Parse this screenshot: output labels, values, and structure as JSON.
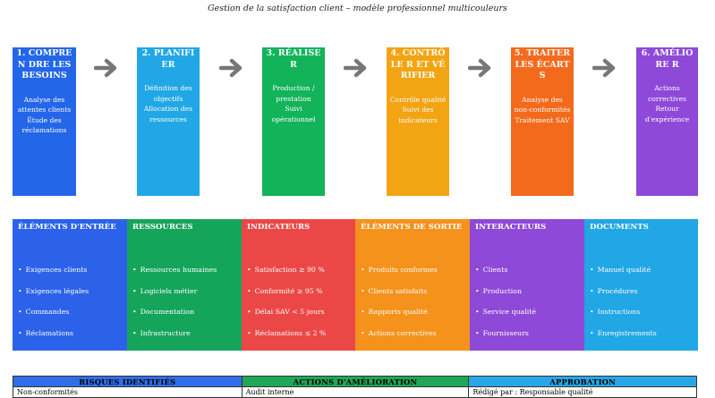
{
  "title": "Gestion de la satisfaction client – modèle professionnel multicouleurs",
  "steps": [
    {
      "head": "1. COMPREN DRE LES BESOINS",
      "color": "#2366e8",
      "lines": [
        "Analyse des attentes clients",
        "Étude des réclamations"
      ]
    },
    {
      "head": "2. PLANIFIER",
      "color": "#21a7e6",
      "lines": [
        "Définition des objectifs",
        "Allocation des ressources"
      ]
    },
    {
      "head": "3. RÉALISER",
      "color": "#13b35a",
      "lines": [
        "Production / prestation",
        "Suivi opérationnel"
      ]
    },
    {
      "head": "4. CONTRÔLE R ET VÉRIFIER",
      "color": "#f2a413",
      "lines": [
        "Contrôle qualité",
        "Suivi des indicateurs"
      ]
    },
    {
      "head": "5. TRAITER LES ÉCARTS",
      "color": "#f46a1c",
      "lines": [
        "Analyse des non-conformités",
        "Traitement SAV"
      ]
    },
    {
      "head": "6. AMÉLIORE R",
      "color": "#8e49d8",
      "lines": [
        "Actions correctives",
        "Retour d'expérience"
      ]
    }
  ],
  "columns": [
    {
      "head": "ÉLÉMENTS D'ENTRÉE",
      "color": "#2b62e9",
      "items": [
        "Exigences clients",
        "Exigences légales",
        "Commandes",
        "Réclamations"
      ]
    },
    {
      "head": "RESSOURCES",
      "color": "#14a55a",
      "items": [
        "Ressources humaines",
        "Logiciels métier",
        "Documentation",
        "Infrastructure"
      ]
    },
    {
      "head": "INDICATEURS",
      "color": "#ec4747",
      "items": [
        "Satisfaction ≥ 90 %",
        "Conformité ≥ 95 %",
        "Délai SAV < 5 jours",
        "Réclamations ≤ 2 %"
      ]
    },
    {
      "head": "ÉLÉMENTS DE SORTIE",
      "color": "#f5921c",
      "items": [
        "Produits conformes",
        "Clients satisfaits",
        "Rapports qualité",
        "Actions correctives"
      ]
    },
    {
      "head": "INTERACTEURS",
      "color": "#8e49d8",
      "items": [
        "Clients",
        "Production",
        "Service qualité",
        "Fournisseurs"
      ]
    },
    {
      "head": "DOCUMENTS",
      "color": "#21a6e6",
      "items": [
        "Manuel qualité",
        "Procédures",
        "Instructions",
        "Enregistrements"
      ]
    }
  ],
  "bottom_table": {
    "headers": [
      {
        "label": "RISQUES IDENTIFIÉS",
        "color": "#2f6ee8"
      },
      {
        "label": "ACTIONS D'AMÉLIORATION",
        "color": "#1fa757"
      },
      {
        "label": "APPROBATION",
        "color": "#28a7e6"
      }
    ],
    "row": [
      "Non-conformités",
      "Audit interne",
      "Rédigé par : Responsable qualité"
    ]
  },
  "arrow_color": "#777777"
}
